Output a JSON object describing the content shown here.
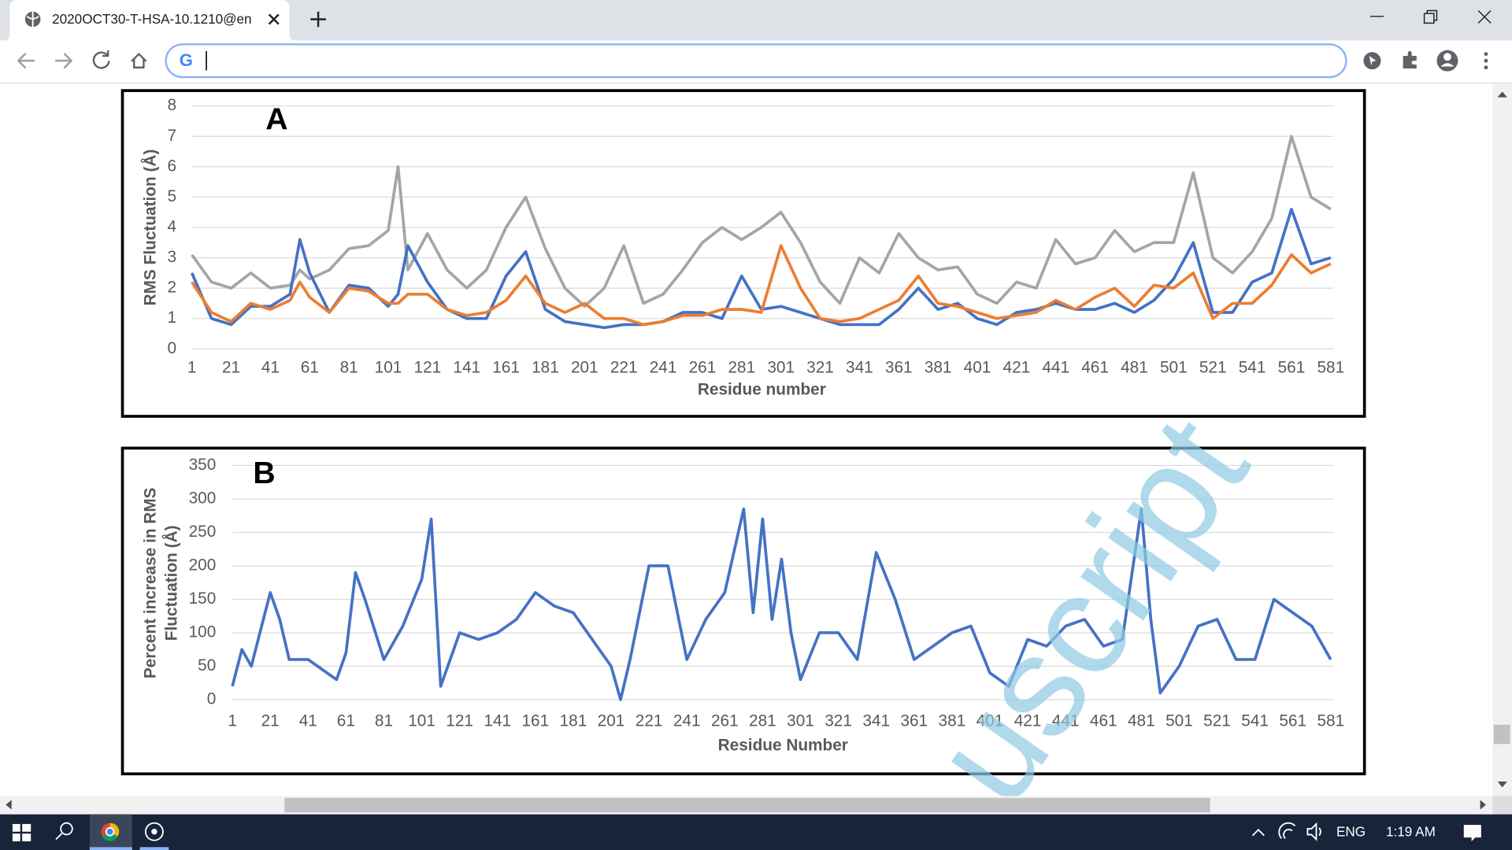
{
  "browser": {
    "tab_title": "2020OCT30-T-HSA-10.1210@en"
  },
  "taskbar": {
    "language": "ENG",
    "time": "1:19 AM"
  },
  "watermark": "uscript",
  "chart_data": [
    {
      "type": "line",
      "panel_label": "A",
      "x_label": "Residue number",
      "y_label": "RMS Fluctuation (Å)",
      "x": [
        1,
        11,
        21,
        31,
        41,
        51,
        56,
        61,
        71,
        81,
        91,
        101,
        106,
        111,
        121,
        131,
        141,
        151,
        161,
        171,
        181,
        191,
        201,
        211,
        221,
        231,
        241,
        251,
        261,
        271,
        281,
        291,
        301,
        311,
        321,
        331,
        341,
        351,
        361,
        371,
        381,
        391,
        401,
        411,
        421,
        431,
        441,
        451,
        461,
        471,
        481,
        491,
        501,
        511,
        521,
        531,
        541,
        551,
        561,
        571,
        581
      ],
      "series": [
        {
          "color": "#a5a5a5",
          "values": [
            3.1,
            2.2,
            2.0,
            2.5,
            2.0,
            2.1,
            2.6,
            2.3,
            2.6,
            3.3,
            3.4,
            3.9,
            6.0,
            2.6,
            3.8,
            2.6,
            2.0,
            2.6,
            4.0,
            5.0,
            3.3,
            2.0,
            1.4,
            2.0,
            3.4,
            1.5,
            1.8,
            2.6,
            3.5,
            4.0,
            3.6,
            4.0,
            4.5,
            3.5,
            2.2,
            1.5,
            3.0,
            2.5,
            3.8,
            3.0,
            2.6,
            2.7,
            1.8,
            1.5,
            2.2,
            2.0,
            3.6,
            2.8,
            3.0,
            3.9,
            3.2,
            3.5,
            3.5,
            5.8,
            3.0,
            2.5,
            3.2,
            4.3,
            7.0,
            5.0,
            4.6
          ]
        },
        {
          "color": "#4472c4",
          "values": [
            2.5,
            1.0,
            0.8,
            1.4,
            1.4,
            1.8,
            3.6,
            2.5,
            1.2,
            2.1,
            2.0,
            1.4,
            1.8,
            3.4,
            2.2,
            1.3,
            1.0,
            1.0,
            2.4,
            3.2,
            1.3,
            0.9,
            0.8,
            0.7,
            0.8,
            0.8,
            0.9,
            1.2,
            1.2,
            1.0,
            2.4,
            1.3,
            1.4,
            1.2,
            1.0,
            0.8,
            0.8,
            0.8,
            1.3,
            2.0,
            1.3,
            1.5,
            1.0,
            0.8,
            1.2,
            1.3,
            1.5,
            1.3,
            1.3,
            1.5,
            1.2,
            1.6,
            2.3,
            3.5,
            1.2,
            1.2,
            2.2,
            2.5,
            4.6,
            2.8,
            3.0
          ]
        },
        {
          "color": "#ed7d31",
          "values": [
            2.2,
            1.2,
            0.9,
            1.5,
            1.3,
            1.6,
            2.2,
            1.7,
            1.2,
            2.0,
            1.9,
            1.5,
            1.5,
            1.8,
            1.8,
            1.3,
            1.1,
            1.2,
            1.6,
            2.4,
            1.5,
            1.2,
            1.5,
            1.0,
            1.0,
            0.8,
            0.9,
            1.1,
            1.1,
            1.3,
            1.3,
            1.2,
            3.4,
            2.0,
            1.0,
            0.9,
            1.0,
            1.3,
            1.6,
            2.4,
            1.5,
            1.4,
            1.2,
            1.0,
            1.1,
            1.2,
            1.6,
            1.3,
            1.7,
            2.0,
            1.4,
            2.1,
            2.0,
            2.5,
            1.0,
            1.5,
            1.5,
            2.1,
            3.1,
            2.5,
            2.8
          ]
        }
      ],
      "xlim": [
        1,
        581
      ],
      "xticks": [
        1,
        21,
        41,
        61,
        81,
        101,
        121,
        141,
        161,
        181,
        201,
        221,
        241,
        261,
        281,
        301,
        321,
        341,
        361,
        381,
        401,
        421,
        441,
        461,
        481,
        501,
        521,
        541,
        561,
        581
      ],
      "ylim": [
        0,
        8
      ],
      "yticks": [
        0,
        1,
        2,
        3,
        4,
        5,
        6,
        7,
        8
      ],
      "grid": true
    },
    {
      "type": "line",
      "panel_label": "B",
      "x_label": "Residue Number",
      "y_label": [
        "Percent increase in RMS",
        "Fluctuation (Å)"
      ],
      "x": [
        1,
        6,
        11,
        21,
        26,
        31,
        41,
        51,
        56,
        61,
        66,
        71,
        81,
        91,
        101,
        106,
        111,
        121,
        131,
        141,
        151,
        161,
        171,
        181,
        191,
        201,
        206,
        211,
        221,
        231,
        241,
        251,
        261,
        271,
        276,
        281,
        286,
        291,
        296,
        301,
        311,
        321,
        331,
        341,
        351,
        361,
        371,
        381,
        391,
        401,
        411,
        421,
        431,
        441,
        451,
        461,
        471,
        481,
        486,
        491,
        501,
        511,
        521,
        531,
        541,
        551,
        561,
        571,
        581
      ],
      "series": [
        {
          "color": "#4472c4",
          "values": [
            20,
            75,
            50,
            160,
            120,
            60,
            60,
            40,
            30,
            70,
            190,
            150,
            60,
            110,
            180,
            270,
            20,
            100,
            90,
            100,
            120,
            160,
            140,
            130,
            90,
            50,
            0,
            60,
            200,
            200,
            60,
            120,
            160,
            285,
            130,
            270,
            120,
            210,
            100,
            30,
            100,
            100,
            60,
            220,
            150,
            60,
            80,
            100,
            110,
            40,
            20,
            90,
            80,
            110,
            120,
            80,
            90,
            285,
            120,
            10,
            50,
            110,
            120,
            60,
            60,
            150,
            130,
            110,
            60
          ]
        }
      ],
      "xlim": [
        1,
        581
      ],
      "xticks": [
        1,
        21,
        41,
        61,
        81,
        101,
        121,
        141,
        161,
        181,
        201,
        221,
        241,
        261,
        281,
        301,
        321,
        341,
        361,
        381,
        401,
        421,
        441,
        461,
        481,
        501,
        521,
        541,
        561,
        581
      ],
      "ylim": [
        0,
        350
      ],
      "yticks": [
        0,
        50,
        100,
        150,
        200,
        250,
        300,
        350
      ],
      "grid": true
    }
  ]
}
